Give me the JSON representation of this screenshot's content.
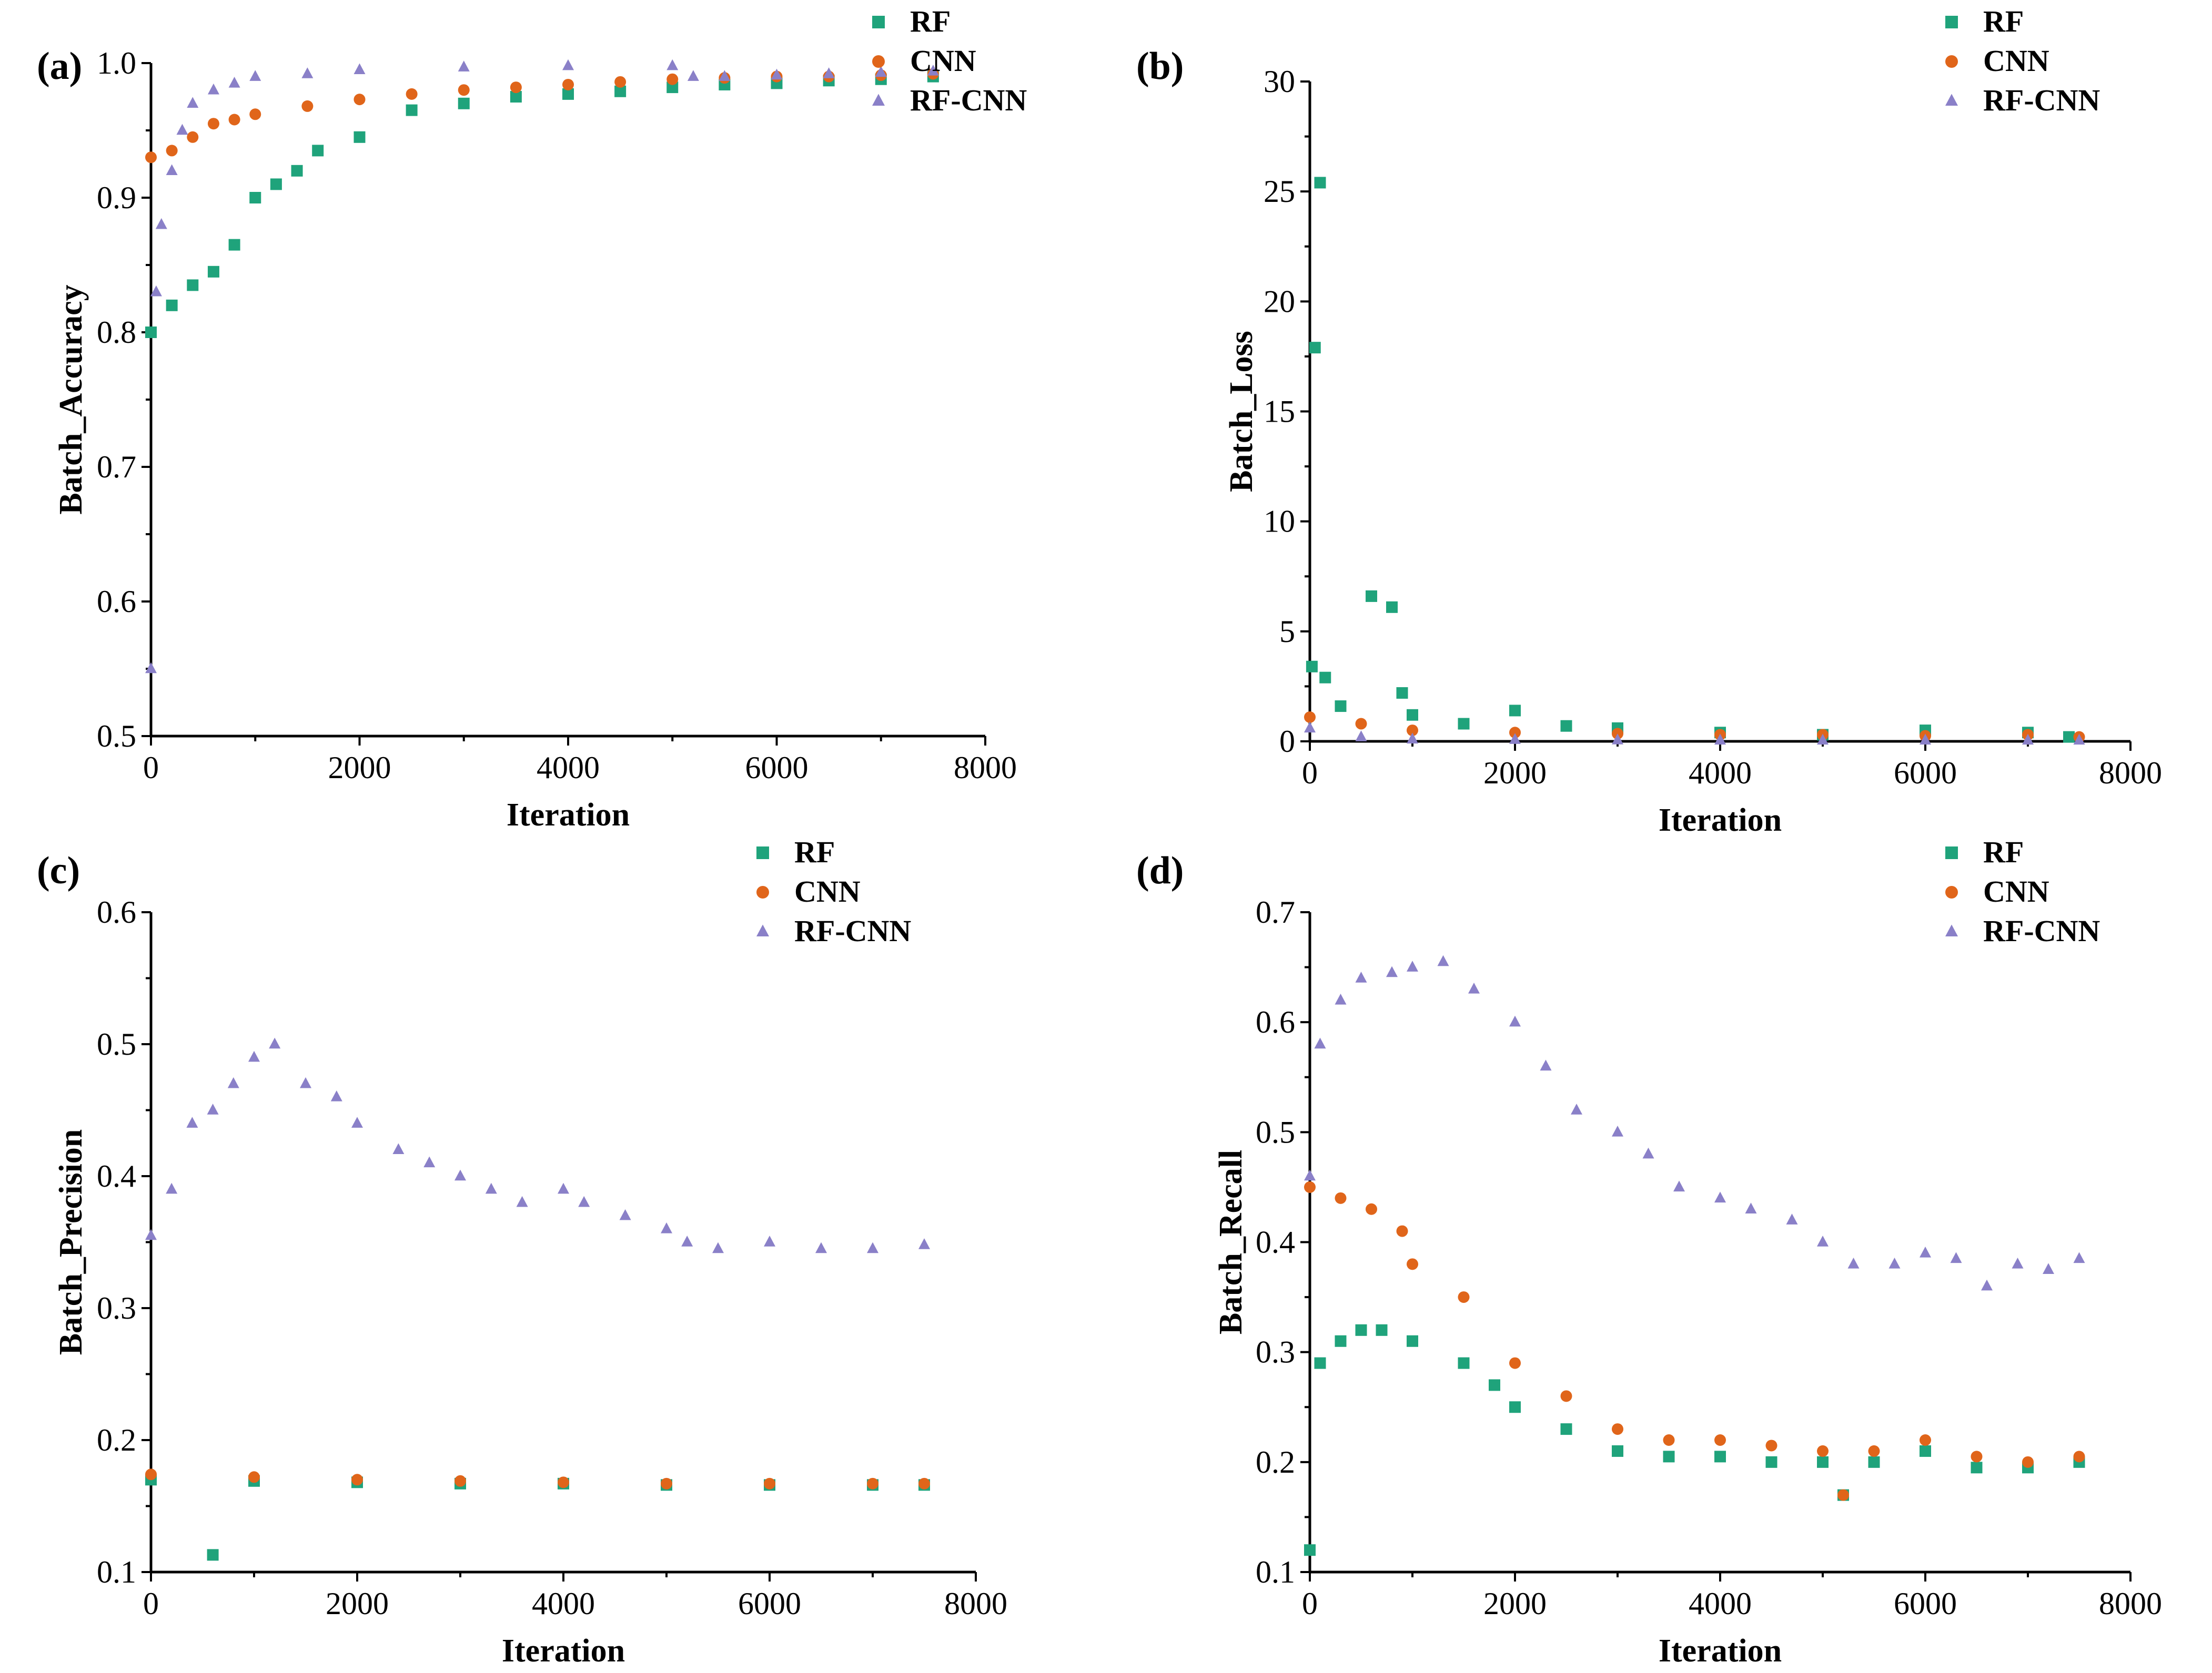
{
  "colors": {
    "RF": "#1fa37b",
    "CNN": "#e0651a",
    "RF-CNN": "#8a80c8"
  },
  "chart_data": [
    {
      "panel": "(a)",
      "type": "scatter",
      "xlabel": "Iteration",
      "ylabel": "Batch_Accuracy",
      "xlim": [
        0,
        8000
      ],
      "ylim": [
        0.5,
        1.0
      ],
      "xticks": [
        "0",
        "2000",
        "4000",
        "6000",
        "8000"
      ],
      "yticks": [
        "0.5",
        "0.6",
        "0.7",
        "0.8",
        "0.9",
        "1.0"
      ],
      "legend": [
        "RF",
        "CNN",
        "RF-CNN"
      ],
      "series": [
        {
          "name": "RF",
          "marker": "square",
          "x": [
            0,
            200,
            400,
            600,
            800,
            1000,
            1200,
            1400,
            1600,
            2000,
            2500,
            3000,
            3500,
            4000,
            4500,
            5000,
            5500,
            6000,
            6500,
            7000,
            7500
          ],
          "values": [
            0.8,
            0.82,
            0.835,
            0.845,
            0.865,
            0.9,
            0.91,
            0.92,
            0.935,
            0.945,
            0.965,
            0.97,
            0.975,
            0.977,
            0.979,
            0.982,
            0.984,
            0.985,
            0.987,
            0.988,
            0.99
          ]
        },
        {
          "name": "CNN",
          "marker": "circle",
          "x": [
            0,
            200,
            400,
            600,
            800,
            1000,
            1500,
            2000,
            2500,
            3000,
            3500,
            4000,
            4500,
            5000,
            5500,
            6000,
            6500,
            7000,
            7500
          ],
          "values": [
            0.93,
            0.935,
            0.945,
            0.955,
            0.958,
            0.962,
            0.968,
            0.973,
            0.977,
            0.98,
            0.982,
            0.984,
            0.986,
            0.988,
            0.989,
            0.99,
            0.99,
            0.991,
            0.992
          ]
        },
        {
          "name": "RF-CNN",
          "marker": "triangle",
          "x": [
            0,
            50,
            100,
            200,
            300,
            400,
            600,
            800,
            1000,
            1500,
            2000,
            3000,
            4000,
            5000,
            5200,
            5500,
            6000,
            6500,
            7000,
            7500
          ],
          "values": [
            0.55,
            0.83,
            0.88,
            0.92,
            0.95,
            0.97,
            0.98,
            0.985,
            0.99,
            0.992,
            0.995,
            0.997,
            0.998,
            0.998,
            0.99,
            0.99,
            0.991,
            0.992,
            0.993,
            0.994
          ]
        }
      ]
    },
    {
      "panel": "(b)",
      "type": "scatter",
      "xlabel": "Iteration",
      "ylabel": "Batch_Loss",
      "xlim": [
        0,
        8000
      ],
      "ylim": [
        0,
        30
      ],
      "xticks": [
        "0",
        "2000",
        "4000",
        "6000",
        "8000"
      ],
      "yticks": [
        "0",
        "5",
        "10",
        "15",
        "20",
        "25",
        "30"
      ],
      "legend": [
        "RF",
        "CNN",
        "RF-CNN"
      ],
      "series": [
        {
          "name": "RF",
          "marker": "square",
          "x": [
            20,
            50,
            100,
            150,
            300,
            600,
            800,
            900,
            1000,
            1500,
            2000,
            2500,
            3000,
            4000,
            5000,
            6000,
            7000,
            7400
          ],
          "values": [
            3.4,
            17.9,
            25.4,
            2.9,
            1.6,
            6.6,
            6.1,
            2.2,
            1.2,
            0.8,
            1.4,
            0.7,
            0.6,
            0.4,
            0.3,
            0.5,
            0.4,
            0.2
          ]
        },
        {
          "name": "CNN",
          "marker": "circle",
          "x": [
            0,
            500,
            1000,
            2000,
            3000,
            4000,
            5000,
            6000,
            7000,
            7500
          ],
          "values": [
            1.1,
            0.8,
            0.5,
            0.4,
            0.35,
            0.3,
            0.3,
            0.25,
            0.3,
            0.2
          ]
        },
        {
          "name": "RF-CNN",
          "marker": "triangle",
          "x": [
            0,
            500,
            1000,
            2000,
            3000,
            4000,
            5000,
            6000,
            7000,
            7500
          ],
          "values": [
            0.6,
            0.2,
            0.1,
            0.08,
            0.06,
            0.05,
            0.05,
            0.05,
            0.05,
            0.05
          ]
        }
      ]
    },
    {
      "panel": "(c)",
      "type": "scatter",
      "xlabel": "Iteration",
      "ylabel": "Batch_Precision",
      "xlim": [
        0,
        8000
      ],
      "ylim": [
        0.1,
        0.6
      ],
      "xticks": [
        "0",
        "2000",
        "4000",
        "6000",
        "8000"
      ],
      "yticks": [
        "0.1",
        "0.2",
        "0.3",
        "0.4",
        "0.5",
        "0.6"
      ],
      "legend": [
        "RF",
        "CNN",
        "RF-CNN"
      ],
      "series": [
        {
          "name": "RF",
          "marker": "square",
          "x": [
            0,
            600,
            1000,
            2000,
            3000,
            4000,
            5000,
            6000,
            7000,
            7500
          ],
          "values": [
            0.17,
            0.113,
            0.169,
            0.168,
            0.167,
            0.167,
            0.166,
            0.166,
            0.166,
            0.166
          ]
        },
        {
          "name": "CNN",
          "marker": "circle",
          "x": [
            0,
            1000,
            2000,
            3000,
            4000,
            5000,
            6000,
            7000,
            7500
          ],
          "values": [
            0.174,
            0.172,
            0.17,
            0.169,
            0.168,
            0.167,
            0.167,
            0.167,
            0.167
          ]
        },
        {
          "name": "RF-CNN",
          "marker": "triangle",
          "x": [
            0,
            200,
            400,
            600,
            800,
            1000,
            1200,
            1500,
            1800,
            2000,
            2400,
            2700,
            3000,
            3300,
            3600,
            4000,
            4200,
            4600,
            5000,
            5200,
            5500,
            6000,
            6500,
            7000,
            7500
          ],
          "values": [
            0.355,
            0.39,
            0.44,
            0.45,
            0.47,
            0.49,
            0.5,
            0.47,
            0.46,
            0.44,
            0.42,
            0.41,
            0.4,
            0.39,
            0.38,
            0.39,
            0.38,
            0.37,
            0.36,
            0.35,
            0.345,
            0.35,
            0.345,
            0.345,
            0.348
          ]
        }
      ]
    },
    {
      "panel": "(d)",
      "type": "scatter",
      "xlabel": "Iteration",
      "ylabel": "Batch_Recall",
      "xlim": [
        0,
        8000
      ],
      "ylim": [
        0.1,
        0.7
      ],
      "xticks": [
        "0",
        "2000",
        "4000",
        "6000",
        "8000"
      ],
      "yticks": [
        "0.1",
        "0.2",
        "0.3",
        "0.4",
        "0.5",
        "0.6",
        "0.7"
      ],
      "legend": [
        "RF",
        "CNN",
        "RF-CNN"
      ],
      "series": [
        {
          "name": "RF",
          "marker": "square",
          "x": [
            0,
            100,
            300,
            500,
            700,
            1000,
            1500,
            1800,
            2000,
            2500,
            3000,
            3500,
            4000,
            4500,
            5000,
            5200,
            5500,
            6000,
            6500,
            7000,
            7500
          ],
          "values": [
            0.12,
            0.29,
            0.31,
            0.32,
            0.32,
            0.31,
            0.29,
            0.27,
            0.25,
            0.23,
            0.21,
            0.205,
            0.205,
            0.2,
            0.2,
            0.17,
            0.2,
            0.21,
            0.195,
            0.195,
            0.2
          ]
        },
        {
          "name": "CNN",
          "marker": "circle",
          "x": [
            0,
            300,
            600,
            900,
            1000,
            1500,
            2000,
            2500,
            3000,
            3500,
            4000,
            4500,
            5000,
            5200,
            5500,
            6000,
            6500,
            7000,
            7500
          ],
          "values": [
            0.45,
            0.44,
            0.43,
            0.41,
            0.38,
            0.35,
            0.29,
            0.26,
            0.23,
            0.22,
            0.22,
            0.215,
            0.21,
            0.17,
            0.21,
            0.22,
            0.205,
            0.2,
            0.205
          ]
        },
        {
          "name": "RF-CNN",
          "marker": "triangle",
          "x": [
            0,
            100,
            300,
            500,
            800,
            1000,
            1300,
            1600,
            2000,
            2300,
            2600,
            3000,
            3300,
            3600,
            4000,
            4300,
            4700,
            5000,
            5300,
            5700,
            6000,
            6300,
            6600,
            6900,
            7200,
            7500
          ],
          "values": [
            0.46,
            0.58,
            0.62,
            0.64,
            0.645,
            0.65,
            0.655,
            0.63,
            0.6,
            0.56,
            0.52,
            0.5,
            0.48,
            0.45,
            0.44,
            0.43,
            0.42,
            0.4,
            0.38,
            0.38,
            0.39,
            0.385,
            0.36,
            0.38,
            0.375,
            0.385
          ]
        }
      ]
    }
  ]
}
